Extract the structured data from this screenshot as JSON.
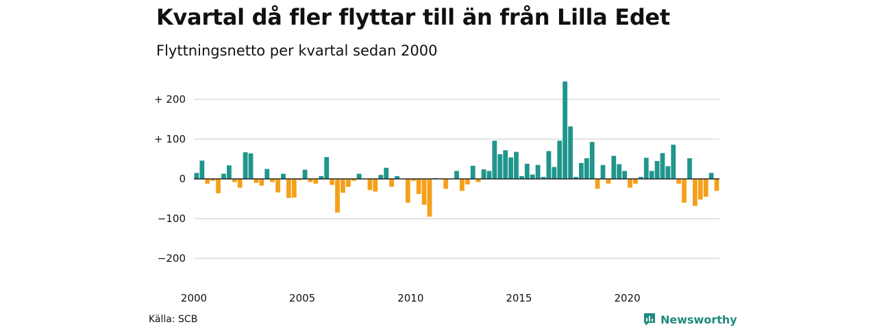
{
  "title": "Kvartal då fler flyttar till än från Lilla Edet",
  "subtitle": "Flyttningsnetto per kvartal sedan 2000",
  "source": "Källa: SCB",
  "brand": {
    "name": "Newsworthy",
    "icon": "newsworthy-logo-icon"
  },
  "colors": {
    "positive": "#1f968b",
    "negative": "#f5a01a",
    "grid": "#dcdcdc",
    "zero_line": "#222222"
  },
  "chart_data": {
    "type": "bar",
    "title": "Kvartal då fler flyttar till än från Lilla Edet",
    "subtitle": "Flyttningsnetto per kvartal sedan 2000",
    "xlabel": "",
    "ylabel": "",
    "ylim": [
      -240,
      250
    ],
    "y_ticks": [
      200,
      100,
      0,
      -100,
      -200
    ],
    "y_tick_labels": [
      "+ 200",
      "+ 100",
      "0",
      "−100",
      "−200"
    ],
    "x_tick_labels": [
      "2000",
      "2005",
      "2010",
      "2015",
      "2020"
    ],
    "x_ticks_quarter_index": [
      0,
      20,
      40,
      60,
      80
    ],
    "grid": true,
    "first_quarter": "2000 Q1",
    "values": [
      15,
      46,
      -12,
      -5,
      -36,
      13,
      34,
      -8,
      -22,
      67,
      64,
      -10,
      -17,
      25,
      -8,
      -34,
      13,
      -48,
      -47,
      -3,
      23,
      -8,
      -12,
      7,
      55,
      -15,
      -85,
      -35,
      -20,
      -5,
      13,
      0,
      -28,
      -32,
      10,
      28,
      -20,
      7,
      0,
      -60,
      -5,
      -38,
      -65,
      -95,
      2,
      0,
      -25,
      0,
      20,
      -30,
      -14,
      33,
      -8,
      24,
      20,
      96,
      62,
      72,
      54,
      68,
      7,
      38,
      11,
      35,
      5,
      70,
      30,
      96,
      245,
      132,
      5,
      40,
      52,
      93,
      -25,
      35,
      -12,
      58,
      37,
      20,
      -22,
      -12,
      5,
      53,
      20,
      45,
      65,
      32,
      86,
      -12,
      -60,
      52,
      -68,
      -52,
      -45,
      15,
      -30
    ]
  }
}
